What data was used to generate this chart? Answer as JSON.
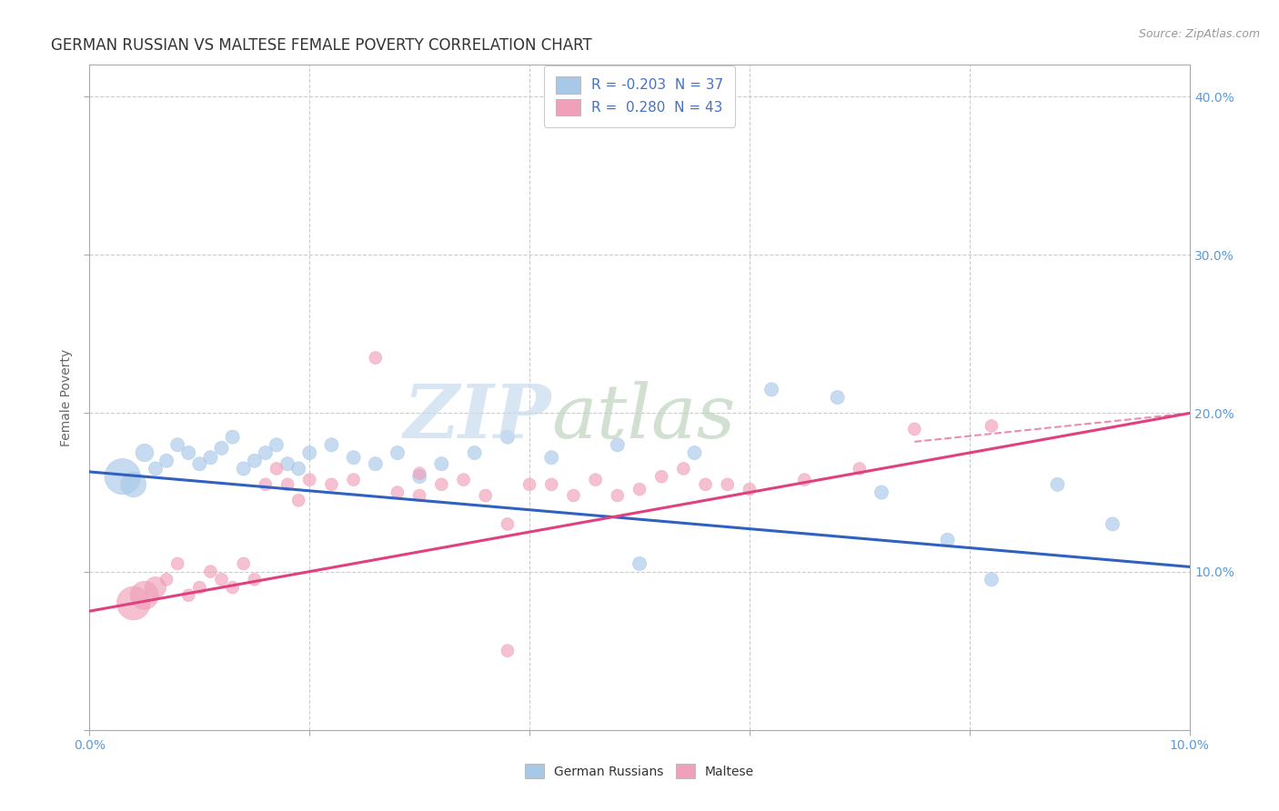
{
  "title": "GERMAN RUSSIAN VS MALTESE FEMALE POVERTY CORRELATION CHART",
  "source": "Source: ZipAtlas.com",
  "ylabel": "Female Poverty",
  "xlim": [
    0.0,
    0.1
  ],
  "ylim": [
    0.0,
    0.42
  ],
  "blue_color": "#A8C8E8",
  "pink_color": "#F0A0B8",
  "blue_line_color": "#3060C0",
  "pink_line_color": "#E04080",
  "grid_color": "#CCCCCC",
  "legend_R_blue": "-0.203",
  "legend_N_blue": "37",
  "legend_R_pink": "0.280",
  "legend_N_pink": "43",
  "blue_scatter_x": [
    0.003,
    0.004,
    0.005,
    0.006,
    0.007,
    0.008,
    0.009,
    0.01,
    0.011,
    0.012,
    0.013,
    0.014,
    0.015,
    0.016,
    0.017,
    0.018,
    0.019,
    0.02,
    0.022,
    0.024,
    0.026,
    0.028,
    0.03,
    0.032,
    0.035,
    0.038,
    0.042,
    0.048,
    0.05,
    0.055,
    0.062,
    0.068,
    0.072,
    0.078,
    0.082,
    0.088,
    0.093
  ],
  "blue_scatter_y": [
    0.16,
    0.155,
    0.175,
    0.165,
    0.17,
    0.18,
    0.175,
    0.168,
    0.172,
    0.178,
    0.185,
    0.165,
    0.17,
    0.175,
    0.18,
    0.168,
    0.165,
    0.175,
    0.18,
    0.172,
    0.168,
    0.175,
    0.16,
    0.168,
    0.175,
    0.185,
    0.172,
    0.18,
    0.105,
    0.175,
    0.215,
    0.21,
    0.15,
    0.12,
    0.095,
    0.155,
    0.13
  ],
  "pink_scatter_x": [
    0.004,
    0.005,
    0.006,
    0.007,
    0.008,
    0.009,
    0.01,
    0.011,
    0.012,
    0.013,
    0.014,
    0.015,
    0.016,
    0.017,
    0.018,
    0.019,
    0.02,
    0.022,
    0.024,
    0.026,
    0.028,
    0.03,
    0.032,
    0.034,
    0.036,
    0.038,
    0.04,
    0.042,
    0.044,
    0.046,
    0.048,
    0.05,
    0.052,
    0.054,
    0.056,
    0.058,
    0.06,
    0.065,
    0.07,
    0.075,
    0.082,
    0.03,
    0.038
  ],
  "pink_scatter_y": [
    0.08,
    0.085,
    0.09,
    0.095,
    0.105,
    0.085,
    0.09,
    0.1,
    0.095,
    0.09,
    0.105,
    0.095,
    0.155,
    0.165,
    0.155,
    0.145,
    0.158,
    0.155,
    0.158,
    0.235,
    0.15,
    0.148,
    0.155,
    0.158,
    0.148,
    0.05,
    0.155,
    0.155,
    0.148,
    0.158,
    0.148,
    0.152,
    0.16,
    0.165,
    0.155,
    0.155,
    0.152,
    0.158,
    0.165,
    0.19,
    0.192,
    0.162,
    0.13
  ],
  "blue_line_x": [
    0.0,
    0.1
  ],
  "blue_line_y": [
    0.163,
    0.103
  ],
  "pink_line_x": [
    0.0,
    0.1
  ],
  "pink_line_y": [
    0.075,
    0.2
  ]
}
